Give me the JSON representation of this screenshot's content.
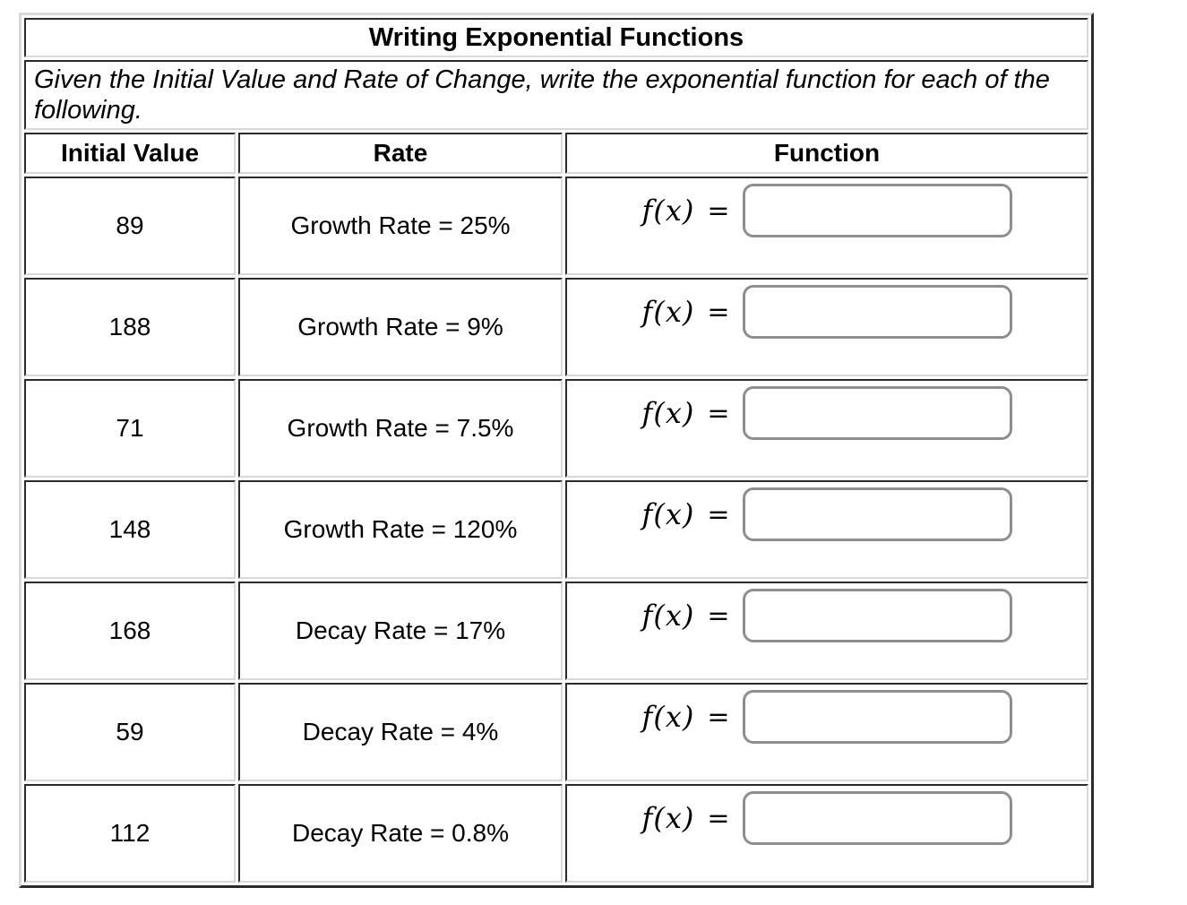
{
  "worksheet": {
    "title": "Writing Exponential Functions",
    "instructions_lines": [
      "Given the Initial Value and Rate of Change, write the exponential function for each of the",
      "following."
    ],
    "columns": {
      "initial_value": "Initial Value",
      "rate": "Rate",
      "function": "Function"
    },
    "function_label": {
      "fx": "f(x)",
      "equals": "="
    },
    "rows": [
      {
        "initial_value": "89",
        "rate": "Growth Rate = 25%",
        "answer_value": ""
      },
      {
        "initial_value": "188",
        "rate": "Growth Rate = 9%",
        "answer_value": ""
      },
      {
        "initial_value": "71",
        "rate": "Growth Rate = 7.5%",
        "answer_value": ""
      },
      {
        "initial_value": "148",
        "rate": "Growth Rate = 120%",
        "answer_value": ""
      },
      {
        "initial_value": "168",
        "rate": "Decay Rate = 17%",
        "answer_value": ""
      },
      {
        "initial_value": "59",
        "rate": "Decay Rate = 4%",
        "answer_value": ""
      },
      {
        "initial_value": "112",
        "rate": "Decay Rate = 0.8%",
        "answer_value": ""
      }
    ]
  },
  "colors": {
    "background": "#ffffff",
    "text": "#000000",
    "cell_border_dark": "#2b2b2b",
    "cell_border_light": "#d8d8d8",
    "answer_box_border": "#8e8e8e"
  }
}
